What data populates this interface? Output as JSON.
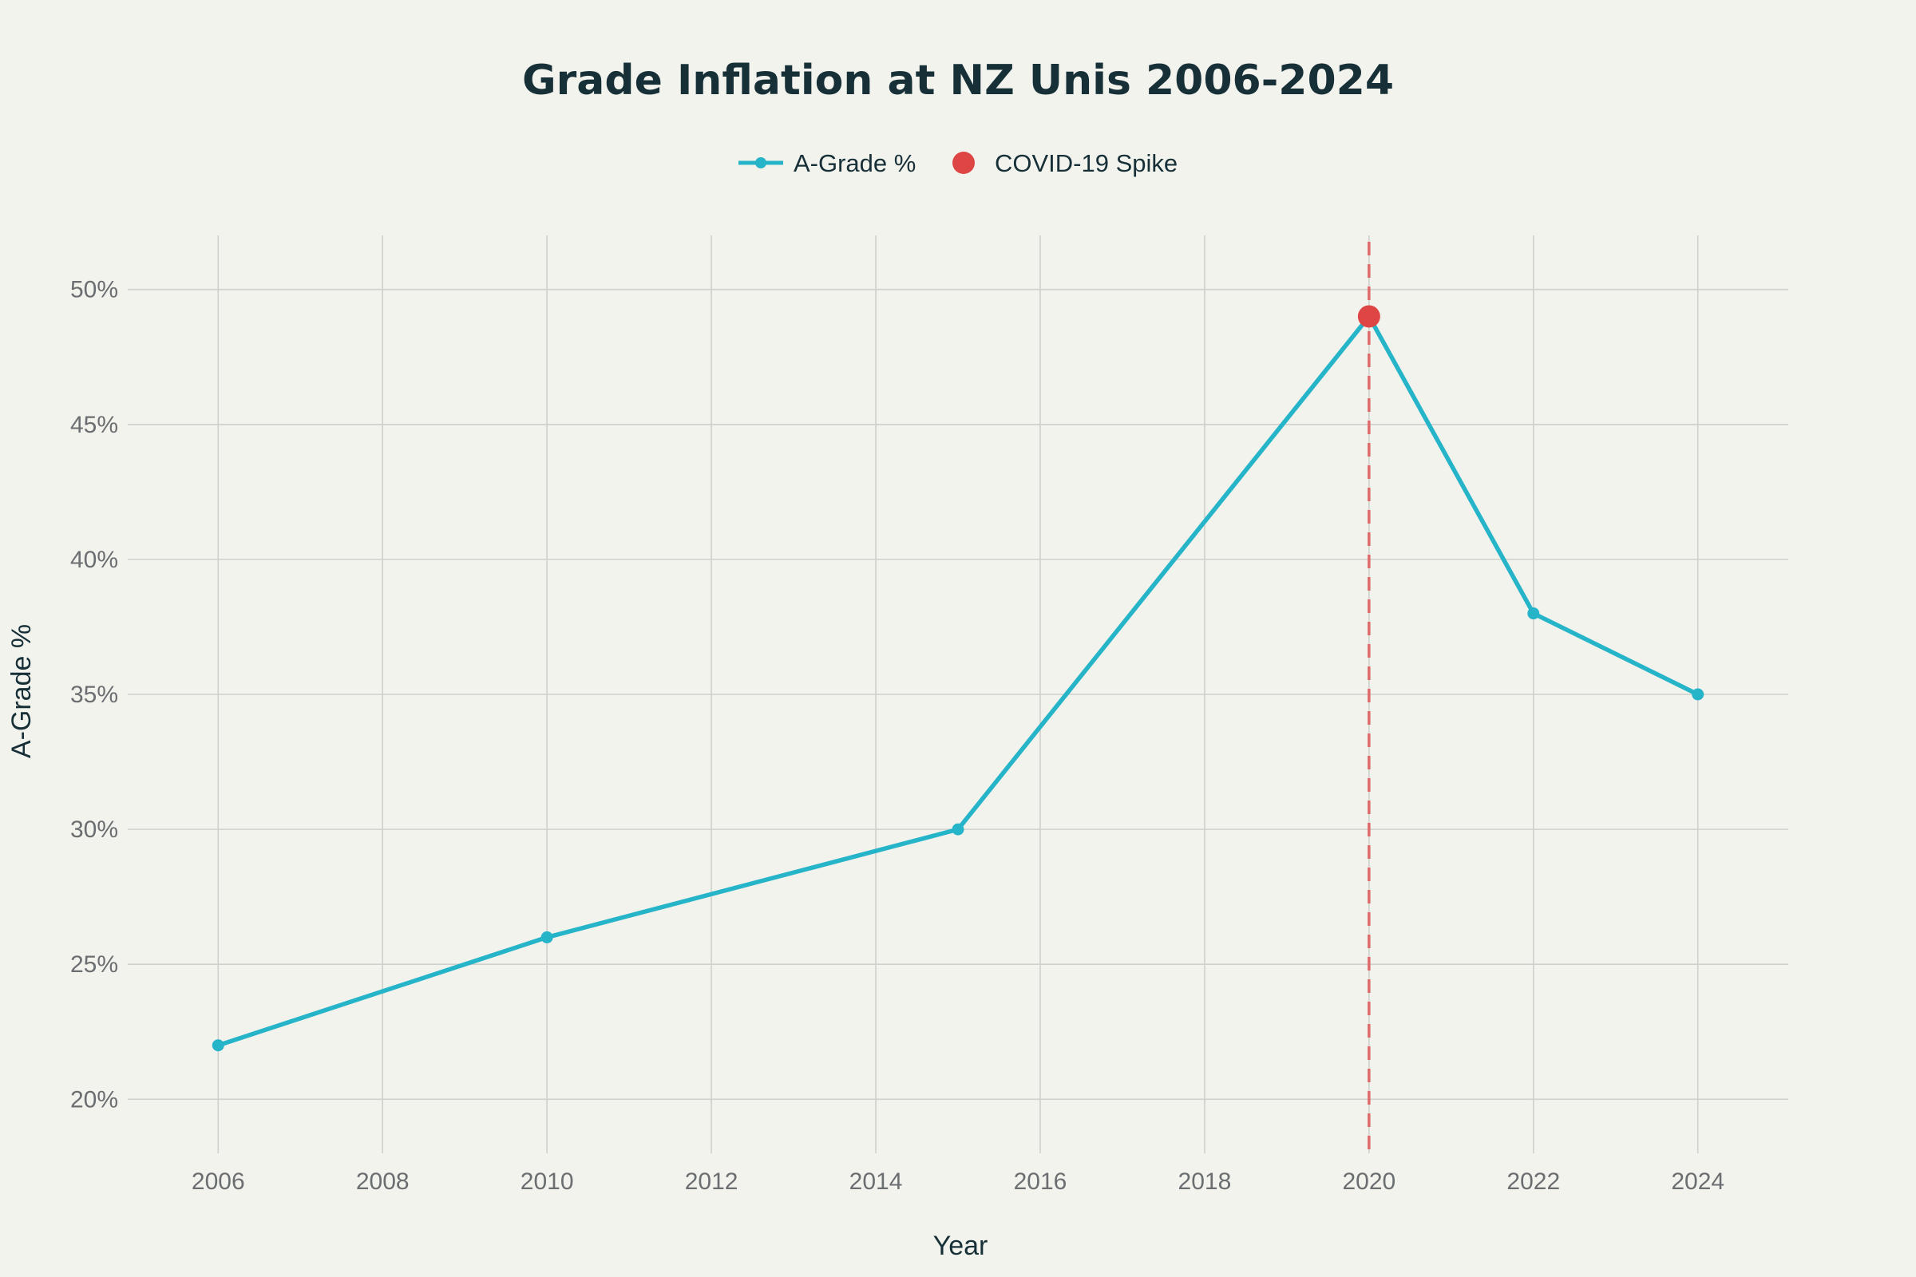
{
  "chart_data": {
    "type": "line",
    "title": "Grade Inflation at NZ Unis 2006-2024",
    "xlabel": "Year",
    "ylabel": "A-Grade %",
    "xlim": [
      2004.9,
      2025.1
    ],
    "ylim": [
      18,
      52
    ],
    "x_ticks": [
      2006,
      2008,
      2010,
      2012,
      2014,
      2016,
      2018,
      2020,
      2022,
      2024
    ],
    "x_tick_labels": [
      "2006",
      "2008",
      "2010",
      "2012",
      "2014",
      "2016",
      "2018",
      "2020",
      "2022",
      "2024"
    ],
    "y_ticks": [
      20,
      25,
      30,
      35,
      40,
      45,
      50
    ],
    "y_tick_labels": [
      "20%",
      "25%",
      "30%",
      "35%",
      "40%",
      "45%",
      "50%"
    ],
    "grid": true,
    "legend_position": "top-center",
    "series": [
      {
        "name": "A-Grade %",
        "x": [
          2006,
          2010,
          2015,
          2020,
          2022,
          2024
        ],
        "y": [
          22,
          26,
          30,
          49,
          38,
          35
        ],
        "color": "#26b4c8"
      },
      {
        "name": "COVID-19 Spike",
        "x": [
          2020
        ],
        "y": [
          49
        ],
        "color": "#de4545",
        "marker": "large-dot"
      }
    ],
    "vertical_line": {
      "x": 2020,
      "style": "dashed",
      "color": "#de6a6a"
    }
  }
}
